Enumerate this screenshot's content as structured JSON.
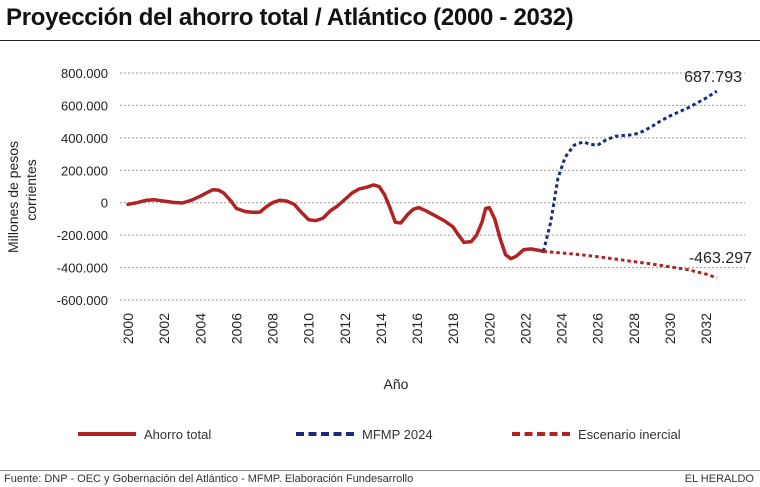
{
  "title": "Proyección del ahorro total / Atlántico (2000 - 2032)",
  "chart_data": {
    "type": "line",
    "xlabel": "Año",
    "ylabel_line1": "Millones de pesos",
    "ylabel_line2": "corrientes",
    "xlim": [
      2000,
      2033
    ],
    "ylim": [
      -600000,
      800000
    ],
    "y_ticks": [
      800000,
      600000,
      400000,
      200000,
      0,
      -200000,
      -400000,
      -600000
    ],
    "y_tick_labels": [
      "800.000",
      "600.000",
      "400.000",
      "200.000",
      "0",
      "-200.000",
      "-400.000",
      "-600.000"
    ],
    "x_ticks": [
      2000,
      2002,
      2004,
      2006,
      2008,
      2010,
      2012,
      2014,
      2016,
      2018,
      2020,
      2022,
      2024,
      2026,
      2028,
      2030,
      2032
    ],
    "x_tick_labels": [
      "2000",
      "2002",
      "2004",
      "2006",
      "2008",
      "2010",
      "2012",
      "2014",
      "2016",
      "2018",
      "2020",
      "2022",
      "2024",
      "2026",
      "2028",
      "2030",
      "2032"
    ],
    "series": [
      {
        "name": "Ahorro total",
        "color": "#b22222",
        "style": "solid",
        "points": [
          [
            2000,
            -10000
          ],
          [
            2000.5,
            0
          ],
          [
            2001,
            15000
          ],
          [
            2001.5,
            18000
          ],
          [
            2002,
            10000
          ],
          [
            2002.5,
            2000
          ],
          [
            2003,
            -2000
          ],
          [
            2003.5,
            15000
          ],
          [
            2004,
            40000
          ],
          [
            2004.3,
            58000
          ],
          [
            2004.7,
            80000
          ],
          [
            2005,
            78000
          ],
          [
            2005.3,
            60000
          ],
          [
            2005.7,
            10000
          ],
          [
            2006,
            -35000
          ],
          [
            2006.5,
            -55000
          ],
          [
            2007,
            -60000
          ],
          [
            2007.3,
            -58000
          ],
          [
            2007.6,
            -30000
          ],
          [
            2008,
            0
          ],
          [
            2008.4,
            15000
          ],
          [
            2008.8,
            10000
          ],
          [
            2009.2,
            -10000
          ],
          [
            2009.6,
            -60000
          ],
          [
            2010,
            -105000
          ],
          [
            2010.4,
            -110000
          ],
          [
            2010.8,
            -95000
          ],
          [
            2011.2,
            -50000
          ],
          [
            2011.6,
            -20000
          ],
          [
            2012,
            20000
          ],
          [
            2012.4,
            60000
          ],
          [
            2012.8,
            85000
          ],
          [
            2013.2,
            95000
          ],
          [
            2013.6,
            110000
          ],
          [
            2013.9,
            100000
          ],
          [
            2014.2,
            50000
          ],
          [
            2014.5,
            -30000
          ],
          [
            2014.8,
            -120000
          ],
          [
            2015.1,
            -125000
          ],
          [
            2015.5,
            -70000
          ],
          [
            2015.8,
            -40000
          ],
          [
            2016.1,
            -30000
          ],
          [
            2016.5,
            -50000
          ],
          [
            2017,
            -80000
          ],
          [
            2017.5,
            -110000
          ],
          [
            2018,
            -150000
          ],
          [
            2018.3,
            -200000
          ],
          [
            2018.6,
            -245000
          ],
          [
            2019,
            -240000
          ],
          [
            2019.3,
            -200000
          ],
          [
            2019.6,
            -120000
          ],
          [
            2019.8,
            -35000
          ],
          [
            2020,
            -30000
          ],
          [
            2020.3,
            -100000
          ],
          [
            2020.6,
            -220000
          ],
          [
            2020.9,
            -320000
          ],
          [
            2021.2,
            -345000
          ],
          [
            2021.5,
            -330000
          ],
          [
            2021.9,
            -290000
          ],
          [
            2022.3,
            -285000
          ],
          [
            2022.8,
            -295000
          ],
          [
            2023,
            -300000
          ]
        ]
      },
      {
        "name": "MFMP 2024",
        "color": "#1a2a80",
        "style": "dashed",
        "points": [
          [
            2023,
            -300000
          ],
          [
            2023.4,
            -120000
          ],
          [
            2023.8,
            150000
          ],
          [
            2024.2,
            280000
          ],
          [
            2024.7,
            355000
          ],
          [
            2025.2,
            375000
          ],
          [
            2025.6,
            360000
          ],
          [
            2026,
            355000
          ],
          [
            2026.5,
            390000
          ],
          [
            2027,
            410000
          ],
          [
            2027.5,
            415000
          ],
          [
            2028,
            420000
          ],
          [
            2028.5,
            440000
          ],
          [
            2029,
            470000
          ],
          [
            2029.5,
            505000
          ],
          [
            2030,
            535000
          ],
          [
            2030.5,
            560000
          ],
          [
            2031,
            585000
          ],
          [
            2031.5,
            615000
          ],
          [
            2032,
            645000
          ],
          [
            2032.6,
            687793
          ]
        ]
      },
      {
        "name": "Escenario inercial",
        "color": "#b22222",
        "style": "dashed",
        "points": [
          [
            2023,
            -300000
          ],
          [
            2024,
            -310000
          ],
          [
            2025,
            -320000
          ],
          [
            2026,
            -333000
          ],
          [
            2027,
            -348000
          ],
          [
            2028,
            -363000
          ],
          [
            2029,
            -378000
          ],
          [
            2030,
            -395000
          ],
          [
            2031,
            -413000
          ],
          [
            2032,
            -440000
          ],
          [
            2032.6,
            -463297
          ]
        ]
      }
    ],
    "annotations": [
      {
        "text": "687.793",
        "series": "MFMP 2024"
      },
      {
        "text": "-463.297",
        "series": "Escenario inercial"
      }
    ]
  },
  "legend": {
    "items": [
      {
        "label": "Ahorro total"
      },
      {
        "label": "MFMP 2024"
      },
      {
        "label": "Escenario inercial"
      }
    ]
  },
  "footer": {
    "source": "Fuente: DNP - OEC y Gobernación del Atlántico - MFMP. Elaboración Fundesarrollo",
    "brand": "EL HERALDO"
  }
}
